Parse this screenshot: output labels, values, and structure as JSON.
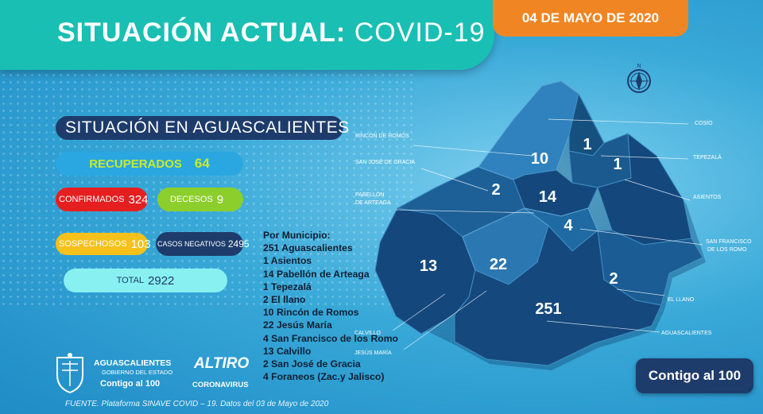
{
  "header": {
    "title_bold": "SITUACIÓN ACTUAL:",
    "title_light": "COVID-19",
    "date": "04 DE MAYO DE 2020"
  },
  "section_title": "SITUACIÓN EN AGUASCALIENTES",
  "stats": {
    "recuperados": {
      "label": "RECUPERADOS",
      "value": "64",
      "color": "#2aa7e0"
    },
    "confirmados": {
      "label": "CONFIRMADOS",
      "value": "324",
      "color": "#e51f1f"
    },
    "decesos": {
      "label": "DECESOS",
      "value": "9",
      "color": "#8ccf2c"
    },
    "sospechosos": {
      "label": "SOSPECHOSOS",
      "value": "103",
      "color": "#f6c11a"
    },
    "negativos": {
      "label": "CASOS NEGATIVOS",
      "value": "2495",
      "color": "#1d3c6b"
    },
    "total": {
      "label": "TOTAL",
      "value": "2922",
      "color": "#88f0f0"
    }
  },
  "municipios": {
    "heading": "Por Municipio:",
    "items": [
      "251 Aguascalientes",
      "1   Asientos",
      "14   Pabellón de Arteaga",
      "1   Tepezalá",
      "2   El llano",
      "10   Rincón de Romos",
      "22 Jesús María",
      "4   San Francisco de los Romo",
      "13 Calvillo",
      "2  San José de Gracia",
      "4  Foraneos (Zac.y Jalisco)"
    ]
  },
  "map": {
    "numbers": {
      "cosio": "1",
      "rincon": "10",
      "tepezala": "1",
      "sanjose": "2",
      "pabellon": "14",
      "sanfrancisco": "4",
      "calvillo": "13",
      "jesusmaria": "22",
      "elllano": "2",
      "aguascalientes": "251"
    },
    "labels": {
      "cosio": "COSÍO",
      "rincon": "RINCÓN DE ROMOS",
      "tepezala": "TEPEZALÁ",
      "sanjose": "SAN JOSÉ DE GRACIA",
      "pabellon1": "PABELLÓN",
      "pabellon2": "DE ARTEAGA",
      "asientos": "ASIENTOS",
      "sanfrancisco1": "SAN FRANCISCO",
      "sanfrancisco2": "DE LOS ROMO",
      "elllano": "EL LLANO",
      "aguascalientes": "AGUASCALIENTES",
      "calvillo": "CALVILLO",
      "jesusmaria": "JESÚS MARÍA"
    },
    "compass": "N"
  },
  "footer": {
    "source": "FUENTE. Plataforma SINAVE COVID – 19. Datos del 03 de Mayo de 2020",
    "gob_line1": "AGUASCALIENTES",
    "gob_line2": "GOBIERNO DEL ESTADO",
    "gob_line3": "Contigo al 100",
    "altiro_line1": "ALTIRO",
    "altiro_line2": "CORONAVIRUS",
    "contigo": "Contigo al 100"
  }
}
